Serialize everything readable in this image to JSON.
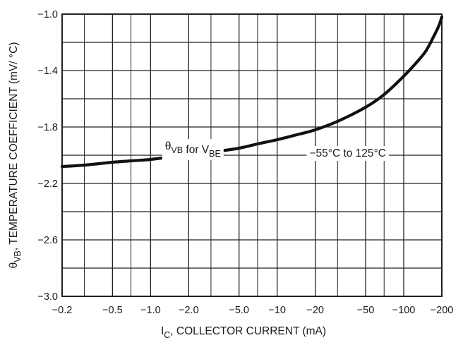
{
  "chart_data": {
    "type": "line",
    "x_scale": "log",
    "x_display": "negative-log (magnitude of I_C on log axis)",
    "xlim": [
      -0.2,
      -200
    ],
    "ylim": [
      -3.0,
      -1.0
    ],
    "grid": true,
    "x_ticks": [
      "-0.2",
      "-0.5",
      "-1.0",
      "-2.0",
      "-5.0",
      "-10",
      "-20",
      "-50",
      "-100",
      "-200"
    ],
    "y_ticks": [
      "-1.0",
      "-1.4",
      "-1.8",
      "-2.2",
      "-2.6",
      "-3.0"
    ],
    "xlabel": {
      "main": "I",
      "sub": "C",
      "rest": ", COLLECTOR CURRENT (mA)"
    },
    "ylabel": {
      "main": "θ",
      "sub": "VB",
      "rest": ", TEMPERATURE COEFFICIENT (mV/ °C)"
    },
    "series": [
      {
        "name": "θVB for VBE",
        "x": [
          -0.2,
          -0.3,
          -0.5,
          -0.7,
          -1.0,
          -1.5,
          -2.0,
          -3.0,
          -5.0,
          -7.0,
          -10,
          -15,
          -20,
          -30,
          -50,
          -70,
          -100,
          -130,
          -150,
          -170,
          -190,
          -200
        ],
        "y": [
          -2.08,
          -2.07,
          -2.05,
          -2.04,
          -2.03,
          -2.01,
          -2.0,
          -1.98,
          -1.95,
          -1.92,
          -1.89,
          -1.85,
          -1.82,
          -1.76,
          -1.66,
          -1.57,
          -1.44,
          -1.33,
          -1.26,
          -1.17,
          -1.08,
          -1.02
        ]
      }
    ],
    "annotations": [
      {
        "id": "vbe",
        "parts": [
          [
            "θ",
            "VB"
          ],
          [
            " for V",
            "BE"
          ]
        ],
        "at_x": -1.3,
        "at_y": -1.96
      },
      {
        "id": "range",
        "text": "−55°C to 125°C",
        "at_x": -18,
        "at_y": -2.01
      }
    ]
  }
}
